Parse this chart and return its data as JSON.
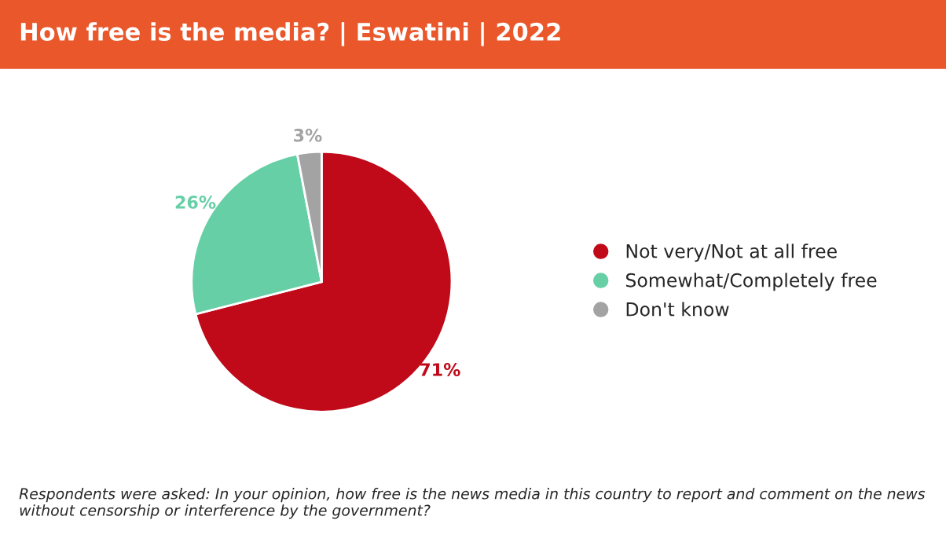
{
  "chart_data": {
    "type": "pie",
    "title": "How free is the media? | Eswatini | 2022",
    "categories": [
      "Not very/Not at all free",
      "Somewhat/Completely free",
      "Don't know"
    ],
    "values": [
      71,
      26,
      3
    ],
    "colors": [
      "#c00a1a",
      "#66cfa6",
      "#a3a3a3"
    ],
    "value_labels": [
      "71%",
      "26%",
      "3%"
    ],
    "legend": "right",
    "annotations": [
      "Respondents were asked: In your opinion, how free is the news media in this country to report and comment on the news without censorship or interference by the government?"
    ]
  }
}
